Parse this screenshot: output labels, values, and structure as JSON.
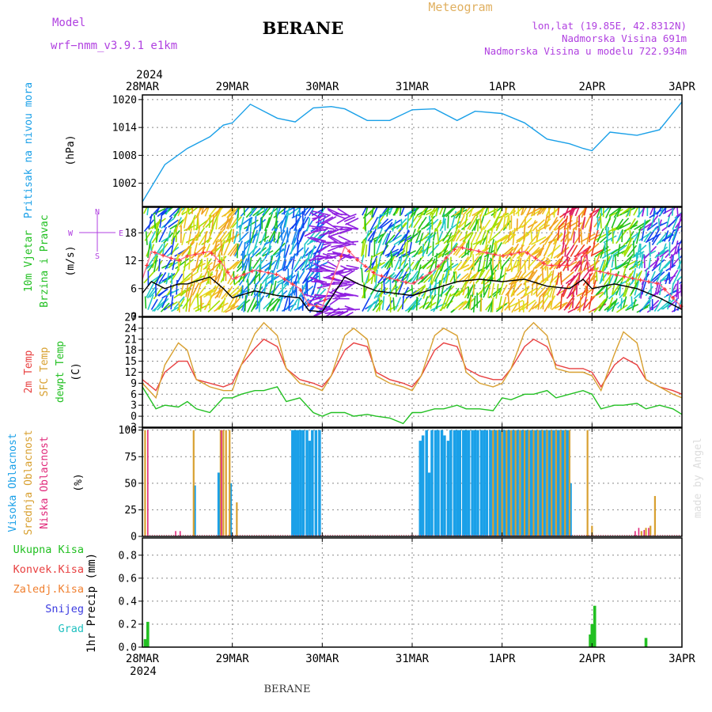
{
  "header": {
    "station": "BERANE",
    "model_label": "Model",
    "model_name": "wrf−nmm_v3.9.1  e1km",
    "product": "Meteogram",
    "lonlat": "lon,lat (19.85E, 42.8312N)",
    "elevation": "Nadmorska Visina 691m",
    "model_elevation": "Nadmorska Visina u modelu 722.934m",
    "footer_station": "BERANE",
    "credit": "made by Angel"
  },
  "colors": {
    "pressure": "#1aa0e8",
    "t2m": "#e84040",
    "sfc": "#d8a030",
    "dewpoint": "#22c022",
    "high_cloud": "#1aa0e8",
    "mid_cloud": "#d8a030",
    "low_cloud": "#e0287a",
    "precip_total": "#22c022",
    "precip_conv": "#e84040",
    "precip_frz": "#f08030",
    "snow": "#3a3ae0",
    "hail": "#20c0c0",
    "wind_label": "#22c022",
    "direction_legend": "#b040e0"
  },
  "chart_data": [
    {
      "type": "line",
      "panel": "pressure",
      "ylabel_lines": [
        "Pritisak na nivou mora"
      ],
      "unit": "(hPa)",
      "ylim": [
        997,
        1021
      ],
      "yticks": [
        1002,
        1008,
        1014,
        1020
      ],
      "x_days": [
        0,
        0.25,
        0.5,
        0.75,
        0.9,
        1.0,
        1.2,
        1.5,
        1.7,
        1.9,
        2.1,
        2.25,
        2.5,
        2.75,
        3.0,
        3.25,
        3.5,
        3.7,
        4.0,
        4.25,
        4.5,
        4.75,
        4.9,
        5.0,
        5.2,
        5.5,
        5.75,
        6.0
      ],
      "series": [
        {
          "values": [
            998,
            1006,
            1009.5,
            1012,
            1014.5,
            1015,
            1019,
            1016,
            1015.2,
            1018.2,
            1018.5,
            1018,
            1015.5,
            1015.5,
            1017.8,
            1018,
            1015.5,
            1017.5,
            1017,
            1015,
            1011.5,
            1010.5,
            1009.5,
            1009,
            1013,
            1012.3,
            1013.5,
            1019.5
          ]
        }
      ]
    },
    {
      "type": "line",
      "panel": "wind",
      "ylabel_lines": [
        "10m Vjetar",
        "Brzina i Pravac"
      ],
      "unit": "(m/s)",
      "direction_legend": [
        "N",
        "E",
        "W",
        "S"
      ],
      "ylim": [
        0,
        23.5
      ],
      "yticks": [
        0,
        6,
        12,
        18
      ],
      "x_days": [
        0,
        0.1,
        0.25,
        0.4,
        0.5,
        0.75,
        0.9,
        1.0,
        1.25,
        1.5,
        1.75,
        1.85,
        2.0,
        2.25,
        2.4,
        2.6,
        3.0,
        3.25,
        3.5,
        3.75,
        4.0,
        4.25,
        4.5,
        4.75,
        4.9,
        5.0,
        5.25,
        5.5,
        5.75,
        6.0
      ],
      "series": [
        {
          "name": "speed",
          "values": [
            5,
            7.5,
            6,
            7,
            7,
            8.5,
            6,
            4,
            5.5,
            4.5,
            4,
            1.3,
            1,
            8.5,
            7,
            5.5,
            4.5,
            6,
            7.5,
            8,
            7.5,
            8,
            6.5,
            6,
            8,
            6,
            7,
            6,
            4,
            1.5
          ]
        },
        {
          "name": "gust",
          "values": [
            8,
            14,
            13,
            12,
            13,
            14,
            11,
            8,
            10,
            9,
            6,
            2.5,
            2,
            15,
            12,
            9,
            7,
            10,
            15,
            14,
            13,
            14,
            11,
            11,
            14,
            10,
            9,
            8,
            7,
            2
          ]
        }
      ],
      "barbs_by_day": [
        {
          "from": 0.0,
          "to": 0.35,
          "colors": [
            "#1040f0",
            "#20c8c8",
            "#20c020",
            "#a0e000"
          ]
        },
        {
          "from": 0.35,
          "to": 1.0,
          "colors": [
            "#e0e020",
            "#f0c020",
            "#f0a020",
            "#a0e000"
          ]
        },
        {
          "from": 1.0,
          "to": 1.5,
          "colors": [
            "#20c8c8",
            "#20c020",
            "#1080f0"
          ]
        },
        {
          "from": 1.5,
          "to": 1.95,
          "colors": [
            "#20c8c8",
            "#1040f0",
            "#1080f0"
          ]
        },
        {
          "from": 1.95,
          "to": 2.4,
          "colors": [
            "#9020e0"
          ]
        },
        {
          "from": 2.4,
          "to": 3.0,
          "colors": [
            "#1040f0",
            "#20c8c8",
            "#20c020",
            "#a0e000"
          ]
        },
        {
          "from": 3.0,
          "to": 3.45,
          "colors": [
            "#20c020",
            "#a0e000",
            "#20c8c8"
          ]
        },
        {
          "from": 3.45,
          "to": 4.0,
          "colors": [
            "#e0e020",
            "#f0c020",
            "#a0e000",
            "#20c020"
          ]
        },
        {
          "from": 4.0,
          "to": 4.6,
          "colors": [
            "#f0c020",
            "#f0a020",
            "#e0e020"
          ]
        },
        {
          "from": 4.6,
          "to": 5.0,
          "colors": [
            "#f04020",
            "#e02060",
            "#f0a020"
          ]
        },
        {
          "from": 5.0,
          "to": 5.5,
          "colors": [
            "#20c020",
            "#a0e000",
            "#20c8c8"
          ]
        },
        {
          "from": 5.5,
          "to": 6.0,
          "colors": [
            "#20c8c8",
            "#1040f0",
            "#9020e0"
          ]
        }
      ]
    },
    {
      "type": "line",
      "panel": "temperature",
      "ylabel_lines": [
        "2m Temp",
        "SFC Temp",
        "dewpt Temp"
      ],
      "unit": "(C)",
      "ylim": [
        -3,
        27
      ],
      "yticks": [
        -3,
        0,
        3,
        6,
        9,
        12,
        15,
        18,
        21,
        24,
        27
      ],
      "x_days": [
        0,
        0.15,
        0.25,
        0.4,
        0.5,
        0.6,
        0.75,
        0.9,
        1.0,
        1.1,
        1.25,
        1.35,
        1.5,
        1.6,
        1.75,
        1.9,
        2.0,
        2.1,
        2.25,
        2.35,
        2.5,
        2.6,
        2.75,
        2.9,
        3.0,
        3.1,
        3.25,
        3.35,
        3.5,
        3.6,
        3.75,
        3.9,
        4.0,
        4.1,
        4.25,
        4.35,
        4.5,
        4.6,
        4.75,
        4.9,
        5.0,
        5.1,
        5.25,
        5.35,
        5.5,
        5.6,
        5.75,
        5.9,
        6.0
      ],
      "series": [
        {
          "name": "2m Temp",
          "values": [
            10,
            7,
            12,
            15,
            15,
            10,
            9,
            8,
            9,
            14,
            18.5,
            21,
            19,
            13,
            10,
            9,
            8,
            11,
            18,
            20,
            19,
            12,
            10,
            9,
            8,
            11,
            18,
            20,
            19,
            13,
            11,
            10,
            10,
            13,
            19,
            21,
            19,
            14,
            13,
            13,
            12,
            8,
            14,
            16,
            14,
            10,
            8,
            7,
            6
          ]
        },
        {
          "name": "SFC Temp",
          "values": [
            9,
            5,
            14,
            20,
            18,
            10,
            8,
            7,
            7,
            14,
            22.5,
            25.5,
            22,
            13,
            9,
            8,
            7,
            11,
            22,
            24,
            21,
            11,
            9,
            8,
            7,
            11,
            22,
            24,
            22,
            12,
            9,
            8,
            9,
            13,
            23,
            25.5,
            22,
            13,
            12,
            12,
            11,
            7,
            17,
            23,
            20,
            10,
            8,
            6,
            5
          ]
        },
        {
          "name": "dewpt Temp",
          "values": [
            8,
            2,
            3,
            2.5,
            4,
            2,
            1,
            5,
            5,
            6,
            7,
            7,
            8,
            4,
            5,
            1,
            0,
            1,
            1,
            0,
            0.5,
            0,
            -0.5,
            -2,
            1,
            1,
            2,
            2,
            3,
            2,
            2,
            1.5,
            5,
            4.5,
            6,
            6,
            7,
            5,
            6,
            7,
            6,
            2,
            3,
            3,
            3.5,
            2,
            3,
            2,
            0.5
          ]
        }
      ]
    },
    {
      "type": "bar",
      "panel": "clouds",
      "ylabel_lines": [
        "Visoka Oblacnost",
        "Srednja Oblacnost",
        "Niska Oblacnost"
      ],
      "unit": "(%)",
      "ylim": [
        0,
        102
      ],
      "yticks": [
        0,
        25,
        50,
        75,
        100
      ],
      "series": [
        {
          "name": "Visoka Oblacnost",
          "x_days": [
            0.58,
            0.85,
            0.98,
            1.67,
            1.7,
            1.73,
            1.76,
            1.79,
            1.83,
            1.86,
            1.89,
            1.93,
            1.97,
            3.09,
            3.12,
            3.16,
            3.19,
            3.22,
            3.26,
            3.29,
            3.33,
            3.36,
            3.4,
            3.43,
            3.47,
            3.5,
            3.53,
            3.57,
            3.6,
            3.63,
            3.67,
            3.7,
            3.73,
            3.77,
            3.8,
            3.83,
            3.87,
            3.9,
            3.93,
            3.97,
            4.0,
            4.03,
            4.07,
            4.1,
            4.13,
            4.17,
            4.2,
            4.23,
            4.27,
            4.3,
            4.33,
            4.37,
            4.4,
            4.43,
            4.47,
            4.5,
            4.53,
            4.57,
            4.6,
            4.63,
            4.67,
            4.7,
            4.73,
            4.76
          ],
          "values": [
            48,
            60,
            50,
            100,
            100,
            100,
            100,
            100,
            100,
            90,
            100,
            100,
            100,
            90,
            95,
            100,
            60,
            100,
            100,
            100,
            100,
            95,
            90,
            100,
            100,
            100,
            100,
            100,
            100,
            100,
            100,
            100,
            100,
            100,
            100,
            100,
            100,
            100,
            100,
            100,
            100,
            100,
            100,
            100,
            100,
            100,
            100,
            100,
            100,
            100,
            100,
            100,
            100,
            100,
            100,
            100,
            100,
            100,
            100,
            100,
            100,
            100,
            100,
            50
          ]
        },
        {
          "name": "Srednja Oblacnost",
          "x_days": [
            0.03,
            0.57,
            0.87,
            0.9,
            0.93,
            0.97,
            1.05,
            3.9,
            3.95,
            4.0,
            4.05,
            4.1,
            4.15,
            4.2,
            4.25,
            4.3,
            4.35,
            4.4,
            4.45,
            4.5,
            4.55,
            4.6,
            4.65,
            4.7,
            4.75,
            4.95,
            5.0,
            5.55,
            5.6,
            5.65,
            5.7
          ],
          "values": [
            100,
            100,
            100,
            100,
            100,
            100,
            32,
            100,
            100,
            100,
            100,
            100,
            100,
            100,
            100,
            100,
            100,
            100,
            100,
            100,
            100,
            100,
            100,
            100,
            100,
            100,
            10,
            5,
            8,
            10,
            38
          ]
        },
        {
          "name": "Niska Oblacnost",
          "x_days": [
            0.06,
            0.37,
            0.42,
            0.88,
            5.48,
            5.52,
            5.58,
            5.63
          ],
          "values": [
            100,
            5,
            5,
            100,
            5,
            8,
            6,
            8
          ]
        }
      ]
    },
    {
      "type": "bar",
      "panel": "precip",
      "ylabel_lines": [
        "1hr Precip"
      ],
      "unit": "(mm)",
      "legend": [
        "Ukupna Kisa",
        "Konvek.Kisa",
        "Zaledj.Kisa",
        "Snijeg",
        "Grad"
      ],
      "ylim": [
        0,
        0.95
      ],
      "yticks": [
        0,
        0.2,
        0.4,
        0.6,
        0.8
      ],
      "series": [
        {
          "name": "Ukupna Kisa",
          "x_days": [
            0.03,
            0.06,
            4.98,
            5.0,
            5.03,
            5.6
          ],
          "values": [
            0.07,
            0.22,
            0.11,
            0.2,
            0.36,
            0.08
          ]
        }
      ]
    }
  ],
  "x_axis": {
    "year": "2024",
    "tick_labels": [
      "28MAR",
      "29MAR",
      "30MAR",
      "31MAR",
      "1APR",
      "2APR",
      "3APR"
    ]
  }
}
